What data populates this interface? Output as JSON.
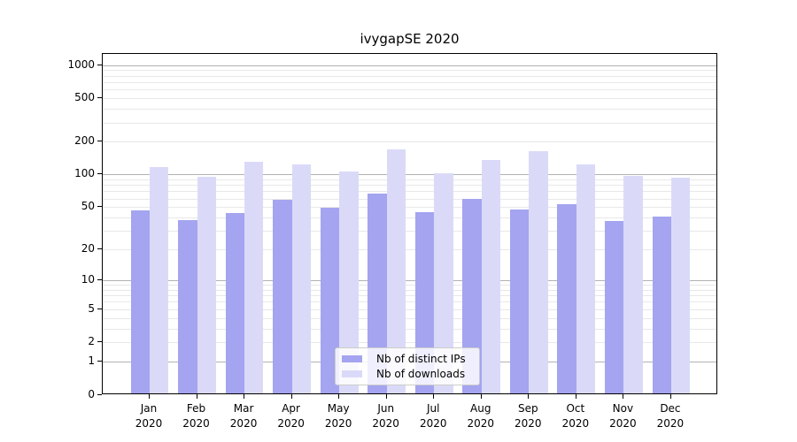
{
  "title": "ivygapSE 2020",
  "chart_data": {
    "type": "bar",
    "title": "ivygapSE 2020",
    "categories": [
      "Jan 2020",
      "Feb 2020",
      "Mar 2020",
      "Apr 2020",
      "May 2020",
      "Jun 2020",
      "Jul 2020",
      "Aug 2020",
      "Sep 2020",
      "Oct 2020",
      "Nov 2020",
      "Dec 2020"
    ],
    "months": [
      "Jan",
      "Feb",
      "Mar",
      "Apr",
      "May",
      "Jun",
      "Jul",
      "Aug",
      "Sep",
      "Oct",
      "Nov",
      "Dec"
    ],
    "year_label": "2020",
    "series": [
      {
        "name": "Nb of distinct IPs",
        "key": "distinct-ips",
        "color": "#a4a4f0",
        "values": [
          45,
          37,
          43,
          57,
          48,
          65,
          44,
          58,
          46,
          52,
          36,
          40
        ]
      },
      {
        "name": "Nb of downloads",
        "key": "downloads",
        "color": "#dadaf8",
        "values": [
          115,
          93,
          127,
          121,
          103,
          165,
          100,
          132,
          160,
          120,
          94,
          91
        ]
      }
    ],
    "y_scale": "log1p",
    "ylim": [
      0,
      1265
    ],
    "y_ticks_labeled": [
      0,
      1,
      2,
      5,
      10,
      20,
      50,
      100,
      200,
      500,
      1000
    ],
    "y_grid_major": [
      1,
      10,
      100,
      1000
    ],
    "y_grid_minor": [
      2,
      3,
      4,
      5,
      6,
      7,
      8,
      9,
      20,
      30,
      40,
      50,
      60,
      70,
      80,
      90,
      200,
      300,
      400,
      500,
      600,
      700,
      800,
      900
    ],
    "grid": true,
    "legend_position": "lower center"
  },
  "colors": {
    "bar_distinct_ips": "#a4a4f0",
    "bar_downloads": "#dadaf8",
    "grid_major": "#b2b2b2",
    "grid_minor": "#e8e8e8",
    "axis": "#000000",
    "legend_border": "#cccccc",
    "text": "#000000"
  }
}
